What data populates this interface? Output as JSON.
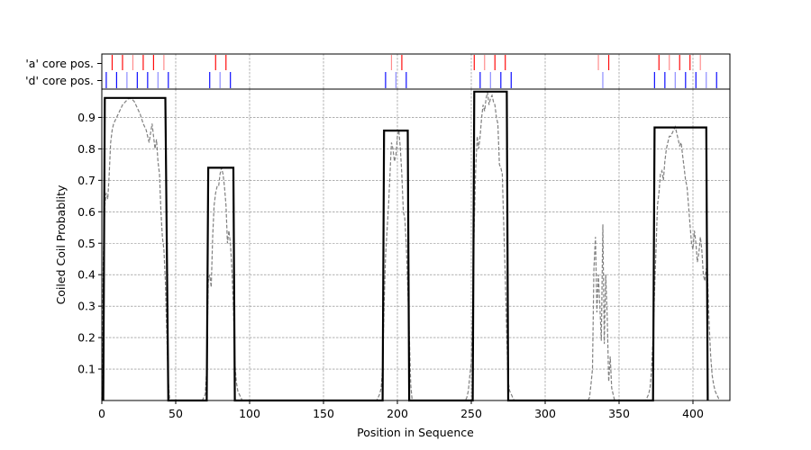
{
  "chart_data": {
    "type": "line",
    "xlabel": "Position in Sequence",
    "ylabel": "Coiled Coil Probablity",
    "xlim": [
      0,
      425
    ],
    "ylim": [
      0,
      0.99
    ],
    "x_ticks": [
      0,
      50,
      100,
      150,
      200,
      250,
      300,
      350,
      400
    ],
    "y_ticks": [
      0.1,
      0.2,
      0.3,
      0.4,
      0.5,
      0.6,
      0.7,
      0.8,
      0.9
    ],
    "grid": true,
    "track_labels": [
      "'a' core pos.",
      "'d' core pos."
    ],
    "colors": {
      "a_track": "#ff0000",
      "d_track": "#0000ff",
      "prediction": "#000000",
      "probability": "#808080"
    },
    "series": [
      {
        "style": "dashed",
        "x": [
          0,
          1,
          2,
          3,
          4,
          5,
          6,
          7,
          8,
          10,
          12,
          14,
          16,
          18,
          20,
          22,
          24,
          26,
          28,
          30,
          31,
          32,
          33,
          34,
          35,
          36,
          37,
          38,
          39,
          40,
          41,
          42,
          43,
          44,
          45,
          46,
          68,
          69,
          70,
          71,
          72,
          73,
          74,
          75,
          76,
          77,
          78,
          79,
          80,
          81,
          82,
          83,
          84,
          85,
          86,
          87,
          88,
          89,
          90,
          91,
          92,
          93,
          94,
          95,
          186,
          187,
          188,
          189,
          190,
          191,
          192,
          193,
          194,
          195,
          196,
          197,
          198,
          199,
          200,
          201,
          202,
          203,
          204,
          205,
          206,
          207,
          208,
          209,
          210,
          246,
          247,
          248,
          249,
          250,
          251,
          252,
          253,
          254,
          255,
          256,
          257,
          258,
          259,
          260,
          261,
          262,
          263,
          264,
          265,
          266,
          267,
          268,
          269,
          270,
          271,
          272,
          273,
          274,
          275,
          276,
          277,
          278,
          279,
          329,
          330,
          331,
          332,
          333,
          334,
          335,
          336,
          337,
          338,
          339,
          340,
          341,
          342,
          343,
          344,
          345,
          346,
          347,
          368,
          369,
          370,
          371,
          372,
          373,
          374,
          375,
          376,
          377,
          378,
          379,
          380,
          381,
          382,
          383,
          384,
          385,
          386,
          387,
          388,
          389,
          390,
          391,
          392,
          393,
          394,
          395,
          396,
          397,
          398,
          399,
          400,
          401,
          402,
          403,
          404,
          405,
          406,
          407,
          408,
          409,
          410,
          411,
          412,
          413,
          414,
          415,
          416,
          417,
          418
        ],
        "values": [
          0,
          0.45,
          0.62,
          0.66,
          0.64,
          0.72,
          0.82,
          0.86,
          0.88,
          0.9,
          0.92,
          0.94,
          0.95,
          0.96,
          0.96,
          0.95,
          0.93,
          0.91,
          0.88,
          0.86,
          0.84,
          0.82,
          0.85,
          0.88,
          0.84,
          0.8,
          0.83,
          0.76,
          0.72,
          0.6,
          0.52,
          0.48,
          0.38,
          0.2,
          0.06,
          0,
          0,
          0.01,
          0.02,
          0.1,
          0.38,
          0.4,
          0.36,
          0.52,
          0.62,
          0.66,
          0.68,
          0.68,
          0.72,
          0.74,
          0.72,
          0.68,
          0.62,
          0.5,
          0.54,
          0.5,
          0.42,
          0.3,
          0.12,
          0.06,
          0.03,
          0.02,
          0.01,
          0,
          0,
          0.01,
          0.02,
          0.04,
          0.1,
          0.3,
          0.46,
          0.54,
          0.62,
          0.72,
          0.82,
          0.8,
          0.76,
          0.78,
          0.84,
          0.86,
          0.8,
          0.72,
          0.6,
          0.58,
          0.5,
          0.36,
          0.22,
          0.05,
          0,
          0,
          0.01,
          0.03,
          0.08,
          0.12,
          0.3,
          0.56,
          0.74,
          0.84,
          0.8,
          0.84,
          0.9,
          0.94,
          0.92,
          0.96,
          0.98,
          0.94,
          0.96,
          0.97,
          0.95,
          0.94,
          0.9,
          0.88,
          0.75,
          0.74,
          0.72,
          0.55,
          0.4,
          0.2,
          0.06,
          0.03,
          0.02,
          0.01,
          0,
          0,
          0.01,
          0.05,
          0.1,
          0.42,
          0.52,
          0.28,
          0.4,
          0.3,
          0.19,
          0.56,
          0.18,
          0.4,
          0.26,
          0.06,
          0.14,
          0.04,
          0.02,
          0,
          0,
          0.01,
          0.02,
          0.04,
          0.1,
          0.2,
          0.35,
          0.48,
          0.62,
          0.66,
          0.72,
          0.73,
          0.7,
          0.76,
          0.8,
          0.82,
          0.84,
          0.84,
          0.85,
          0.86,
          0.87,
          0.85,
          0.83,
          0.81,
          0.82,
          0.78,
          0.74,
          0.7,
          0.68,
          0.62,
          0.56,
          0.5,
          0.48,
          0.54,
          0.5,
          0.44,
          0.47,
          0.52,
          0.48,
          0.4,
          0.38,
          0.42,
          0.38,
          0.24,
          0.14,
          0.08,
          0.05,
          0.03,
          0.02,
          0.01,
          0
        ]
      },
      {
        "style": "solid",
        "x": [
          1,
          2,
          43,
          45,
          71,
          72,
          89,
          90,
          190,
          191,
          207,
          208,
          251,
          252,
          274,
          275,
          373,
          374,
          409,
          410
        ],
        "values": [
          0,
          0.962,
          0.962,
          0,
          0,
          0.74,
          0.74,
          0,
          0,
          0.858,
          0.858,
          0,
          0,
          0.982,
          0.982,
          0,
          0,
          0.868,
          0.868,
          0
        ]
      }
    ],
    "a_positions": [
      7,
      14,
      21,
      28,
      35,
      42,
      77,
      84,
      196,
      203,
      252,
      259,
      266,
      273,
      336,
      343,
      377,
      384,
      391,
      398,
      405
    ],
    "d_positions": [
      3,
      10,
      17,
      24,
      31,
      38,
      45,
      73,
      80,
      87,
      192,
      199,
      206,
      256,
      263,
      270,
      277,
      339,
      374,
      381,
      388,
      395,
      402,
      409,
      416
    ]
  }
}
